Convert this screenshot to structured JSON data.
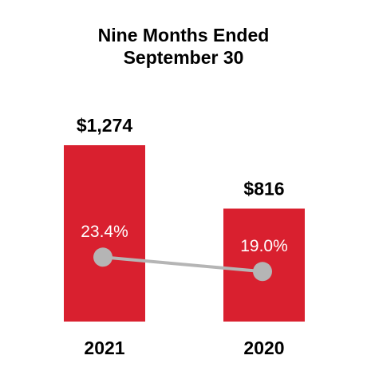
{
  "chart_data": {
    "type": "bar",
    "title": [
      "Nine Months Ended",
      "September 30"
    ],
    "categories": [
      "2021",
      "2020"
    ],
    "series": [
      {
        "type": "bar",
        "color": "#d9202f",
        "values": [
          1274,
          816
        ],
        "value_labels": [
          "$1,274",
          "$816"
        ]
      },
      {
        "type": "line",
        "axis": "y2",
        "color": "#b5b5b5",
        "values": [
          23.4,
          19.0
        ],
        "value_labels": [
          "23.4%",
          "19.0%"
        ]
      }
    ]
  }
}
